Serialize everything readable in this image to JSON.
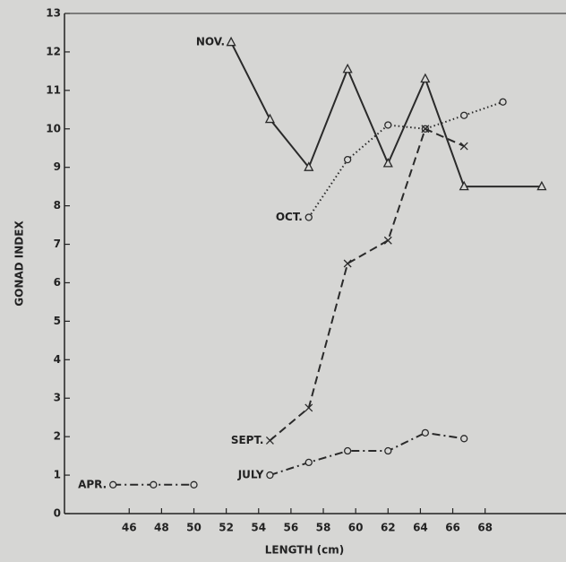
{
  "chart_data": {
    "type": "line",
    "xlabel": "LENGTH (cm)",
    "ylabel": "GONAD INDEX",
    "xlim": [
      42,
      73
    ],
    "ylim": [
      0,
      13
    ],
    "xticks": [
      46,
      48,
      50,
      52,
      54,
      56,
      58,
      60,
      62,
      64,
      66,
      68
    ],
    "yticks": [
      0,
      1,
      2,
      3,
      4,
      5,
      6,
      7,
      8,
      9,
      10,
      11,
      12,
      13
    ],
    "series": [
      {
        "name": "NOV.",
        "color": "#2a2a2a",
        "marker": "triangle",
        "dash": "none",
        "x": [
          52.3,
          54.7,
          57.1,
          59.5,
          62.0,
          64.3,
          66.7,
          71.5
        ],
        "values": [
          12.25,
          10.25,
          9.0,
          11.55,
          9.1,
          11.3,
          8.5,
          8.5
        ]
      },
      {
        "name": "OCT.",
        "color": "#2a2a2a",
        "marker": "circle",
        "dash": "1.5 3",
        "x": [
          57.1,
          59.5,
          62.0,
          64.3,
          66.7,
          69.1
        ],
        "values": [
          7.7,
          9.2,
          10.1,
          10.0,
          10.35,
          10.7
        ]
      },
      {
        "name": "SEPT.",
        "color": "#2a2a2a",
        "marker": "x",
        "dash": "9 5",
        "x": [
          54.7,
          57.1,
          59.5,
          62.0,
          64.3,
          66.7
        ],
        "values": [
          1.9,
          2.75,
          6.5,
          7.1,
          10.0,
          9.55
        ]
      },
      {
        "name": "JULY",
        "color": "#2a2a2a",
        "marker": "circle",
        "dash": "9 4 2 4",
        "x": [
          54.7,
          57.1,
          59.5,
          62.0,
          64.3,
          66.7
        ],
        "values": [
          1.0,
          1.33,
          1.63,
          1.63,
          2.1,
          1.95
        ]
      },
      {
        "name": "APR.",
        "color": "#2a2a2a",
        "marker": "circle",
        "dash": "9 4 2 4",
        "x": [
          45.0,
          47.5,
          50.0
        ],
        "values": [
          0.75,
          0.75,
          0.75
        ]
      }
    ]
  }
}
